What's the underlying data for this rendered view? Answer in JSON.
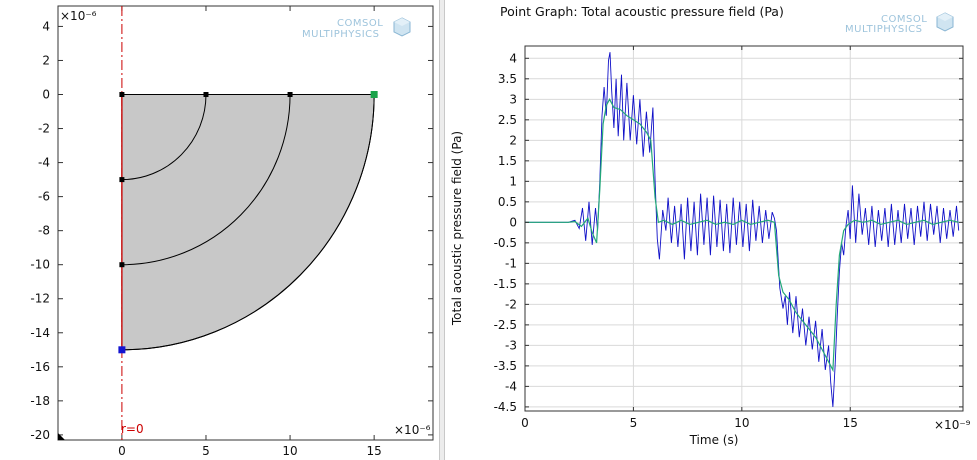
{
  "geometry_view": {
    "x_scale_label": "×10⁻⁶",
    "y_scale_label": "×10⁻⁶",
    "axis_label": "r=0",
    "xlim": [
      -3.8,
      18.5
    ],
    "ylim": [
      -20.3,
      5.2
    ],
    "x_ticks": [
      0,
      5,
      10,
      15
    ],
    "y_ticks": [
      4,
      2,
      0,
      -2,
      -4,
      -6,
      -8,
      -10,
      -12,
      -14,
      -16,
      -18,
      -20
    ],
    "region_fill": "#c8c8c8",
    "axis_line_color": "#cc0000",
    "arc_radii": [
      5,
      10,
      15
    ],
    "vertices": [
      {
        "r": 0,
        "z": 0,
        "color": "#000000"
      },
      {
        "r": 5,
        "z": 0,
        "color": "#000000"
      },
      {
        "r": 10,
        "z": 0,
        "color": "#000000"
      },
      {
        "r": 15,
        "z": 0,
        "color": "#1aa34a"
      },
      {
        "r": 0,
        "z": -5,
        "color": "#000000"
      },
      {
        "r": 0,
        "z": -10,
        "color": "#000000"
      },
      {
        "r": 0,
        "z": -15,
        "color": "#1414d0"
      }
    ],
    "watermark": [
      "COMSOL",
      "MULTIPHYSICS"
    ]
  },
  "chart_data": {
    "type": "line",
    "title": "Point Graph: Total acoustic pressure field (Pa)",
    "xlabel": "Time (s)",
    "x_scale_label": "×10⁻⁹",
    "ylabel": "Total acoustic pressure field (Pa)",
    "xlim": [
      0,
      20.2
    ],
    "ylim": [
      -4.6,
      4.3
    ],
    "x_ticks": [
      0,
      5,
      10,
      15
    ],
    "y_ticks": [
      4,
      3.5,
      3,
      2.5,
      2,
      1.5,
      1,
      0.5,
      0,
      -0.5,
      -1,
      -1.5,
      -2,
      -2.5,
      -3,
      -3.5,
      -4,
      -4.5
    ],
    "grid": true,
    "watermark": [
      "COMSOL",
      "MULTIPHYSICS"
    ],
    "series": [
      {
        "color": "#1010c8",
        "points": [
          [
            0,
            0
          ],
          [
            2.0,
            0
          ],
          [
            2.3,
            0.05
          ],
          [
            2.5,
            -0.15
          ],
          [
            2.65,
            0.35
          ],
          [
            2.8,
            -0.45
          ],
          [
            2.95,
            0.5
          ],
          [
            3.1,
            -0.55
          ],
          [
            3.25,
            0.35
          ],
          [
            3.35,
            -0.2
          ],
          [
            3.45,
            1.0
          ],
          [
            3.55,
            2.6
          ],
          [
            3.65,
            3.3
          ],
          [
            3.75,
            2.6
          ],
          [
            3.85,
            3.95
          ],
          [
            3.92,
            4.15
          ],
          [
            4.0,
            3.2
          ],
          [
            4.1,
            2.3
          ],
          [
            4.2,
            3.5
          ],
          [
            4.3,
            2.1
          ],
          [
            4.45,
            3.6
          ],
          [
            4.55,
            2.0
          ],
          [
            4.7,
            3.4
          ],
          [
            4.85,
            2.0
          ],
          [
            5.0,
            3.1
          ],
          [
            5.15,
            1.9
          ],
          [
            5.3,
            3.0
          ],
          [
            5.45,
            1.6
          ],
          [
            5.6,
            2.7
          ],
          [
            5.75,
            1.7
          ],
          [
            5.9,
            2.8
          ],
          [
            6.0,
            1.0
          ],
          [
            6.1,
            -0.4
          ],
          [
            6.2,
            -0.9
          ],
          [
            6.35,
            0.3
          ],
          [
            6.5,
            -0.2
          ],
          [
            6.6,
            0.6
          ],
          [
            6.75,
            -0.5
          ],
          [
            6.9,
            0.4
          ],
          [
            7.05,
            -0.6
          ],
          [
            7.2,
            0.45
          ],
          [
            7.35,
            -0.9
          ],
          [
            7.5,
            0.6
          ],
          [
            7.65,
            -0.7
          ],
          [
            7.8,
            0.5
          ],
          [
            7.95,
            -0.8
          ],
          [
            8.1,
            0.7
          ],
          [
            8.25,
            -0.55
          ],
          [
            8.4,
            0.6
          ],
          [
            8.55,
            -0.8
          ],
          [
            8.7,
            0.65
          ],
          [
            8.85,
            -0.6
          ],
          [
            9.0,
            0.55
          ],
          [
            9.15,
            -0.7
          ],
          [
            9.3,
            0.45
          ],
          [
            9.45,
            -0.75
          ],
          [
            9.6,
            0.6
          ],
          [
            9.75,
            -0.55
          ],
          [
            9.9,
            0.5
          ],
          [
            10.05,
            -0.6
          ],
          [
            10.2,
            0.45
          ],
          [
            10.35,
            -0.7
          ],
          [
            10.5,
            0.55
          ],
          [
            10.65,
            -0.45
          ],
          [
            10.8,
            0.4
          ],
          [
            10.95,
            -0.5
          ],
          [
            11.1,
            0.3
          ],
          [
            11.25,
            -0.4
          ],
          [
            11.4,
            0.25
          ],
          [
            11.5,
            0.1
          ],
          [
            11.6,
            -0.2
          ],
          [
            11.75,
            -1.6
          ],
          [
            11.9,
            -2.1
          ],
          [
            12.0,
            -1.8
          ],
          [
            12.1,
            -2.5
          ],
          [
            12.2,
            -1.7
          ],
          [
            12.35,
            -2.7
          ],
          [
            12.5,
            -1.8
          ],
          [
            12.65,
            -2.8
          ],
          [
            12.8,
            -2.1
          ],
          [
            12.95,
            -3.0
          ],
          [
            13.1,
            -2.3
          ],
          [
            13.25,
            -3.1
          ],
          [
            13.4,
            -2.4
          ],
          [
            13.55,
            -3.4
          ],
          [
            13.7,
            -2.6
          ],
          [
            13.85,
            -3.6
          ],
          [
            14.0,
            -3.0
          ],
          [
            14.1,
            -3.9
          ],
          [
            14.2,
            -4.5
          ],
          [
            14.3,
            -3.5
          ],
          [
            14.4,
            -2.3
          ],
          [
            14.5,
            -1.2
          ],
          [
            14.6,
            -0.5
          ],
          [
            14.7,
            -0.8
          ],
          [
            14.8,
            -0.1
          ],
          [
            14.9,
            0.3
          ],
          [
            15.0,
            -0.4
          ],
          [
            15.1,
            0.9
          ],
          [
            15.25,
            -0.5
          ],
          [
            15.4,
            0.7
          ],
          [
            15.55,
            -0.3
          ],
          [
            15.7,
            0.35
          ],
          [
            15.85,
            -0.55
          ],
          [
            16.0,
            0.4
          ],
          [
            16.15,
            -0.6
          ],
          [
            16.3,
            0.3
          ],
          [
            16.45,
            -0.45
          ],
          [
            16.6,
            0.35
          ],
          [
            16.75,
            -0.6
          ],
          [
            16.9,
            0.45
          ],
          [
            17.05,
            -0.55
          ],
          [
            17.2,
            0.3
          ],
          [
            17.35,
            -0.5
          ],
          [
            17.5,
            0.45
          ],
          [
            17.65,
            -0.4
          ],
          [
            17.8,
            0.35
          ],
          [
            17.95,
            -0.55
          ],
          [
            18.1,
            0.4
          ],
          [
            18.25,
            -0.35
          ],
          [
            18.4,
            0.5
          ],
          [
            18.55,
            -0.45
          ],
          [
            18.7,
            0.45
          ],
          [
            18.85,
            -0.3
          ],
          [
            19.0,
            0.4
          ],
          [
            19.15,
            -0.5
          ],
          [
            19.3,
            0.35
          ],
          [
            19.45,
            -0.4
          ],
          [
            19.6,
            0.3
          ],
          [
            19.75,
            -0.35
          ],
          [
            19.9,
            0.4
          ],
          [
            20.0,
            -0.2
          ]
        ]
      },
      {
        "color": "#22a878",
        "points": [
          [
            0,
            0
          ],
          [
            2.0,
            0
          ],
          [
            2.3,
            0.02
          ],
          [
            2.6,
            -0.1
          ],
          [
            2.9,
            0.1
          ],
          [
            3.1,
            -0.25
          ],
          [
            3.3,
            -0.5
          ],
          [
            3.45,
            0.8
          ],
          [
            3.6,
            2.4
          ],
          [
            3.75,
            2.85
          ],
          [
            3.9,
            3.0
          ],
          [
            4.1,
            2.8
          ],
          [
            4.4,
            2.75
          ],
          [
            4.7,
            2.6
          ],
          [
            5.0,
            2.5
          ],
          [
            5.3,
            2.4
          ],
          [
            5.6,
            2.2
          ],
          [
            5.8,
            2.0
          ],
          [
            6.0,
            0.6
          ],
          [
            6.15,
            0.0
          ],
          [
            6.4,
            0.05
          ],
          [
            6.8,
            -0.05
          ],
          [
            7.2,
            0.05
          ],
          [
            7.6,
            -0.05
          ],
          [
            8.0,
            0.0
          ],
          [
            8.4,
            0.05
          ],
          [
            8.8,
            -0.05
          ],
          [
            9.2,
            0.0
          ],
          [
            9.6,
            -0.05
          ],
          [
            10.0,
            0.05
          ],
          [
            10.4,
            -0.05
          ],
          [
            10.8,
            0.0
          ],
          [
            11.2,
            0.05
          ],
          [
            11.5,
            0.0
          ],
          [
            11.7,
            -1.3
          ],
          [
            11.9,
            -1.7
          ],
          [
            12.2,
            -1.9
          ],
          [
            12.5,
            -2.2
          ],
          [
            12.8,
            -2.4
          ],
          [
            13.1,
            -2.6
          ],
          [
            13.4,
            -2.8
          ],
          [
            13.7,
            -3.1
          ],
          [
            14.0,
            -3.4
          ],
          [
            14.2,
            -3.6
          ],
          [
            14.35,
            -2.0
          ],
          [
            14.5,
            -0.8
          ],
          [
            14.7,
            -0.2
          ],
          [
            14.9,
            -0.05
          ],
          [
            15.2,
            0.05
          ],
          [
            15.6,
            0.0
          ],
          [
            16.0,
            0.05
          ],
          [
            16.4,
            -0.05
          ],
          [
            16.8,
            0.0
          ],
          [
            17.2,
            0.05
          ],
          [
            17.6,
            -0.05
          ],
          [
            18.0,
            0.0
          ],
          [
            18.4,
            0.05
          ],
          [
            18.8,
            -0.05
          ],
          [
            19.2,
            0.0
          ],
          [
            19.6,
            0.05
          ],
          [
            20.0,
            0.0
          ]
        ]
      }
    ]
  }
}
